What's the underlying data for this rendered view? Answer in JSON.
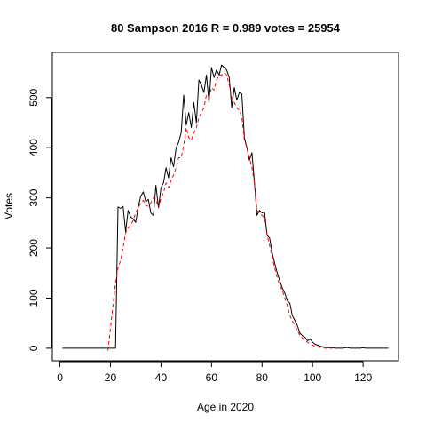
{
  "chart_data": {
    "type": "line",
    "title": "80 Sampson 2016 R = 0.989 votes = 25954",
    "xlabel": "Age in 2020",
    "ylabel": "Votes",
    "xlim": [
      -3,
      134
    ],
    "ylim": [
      -25,
      590
    ],
    "x_ticks": [
      0,
      20,
      40,
      60,
      80,
      100,
      120
    ],
    "y_ticks": [
      0,
      100,
      200,
      300,
      400,
      500
    ],
    "grid": false,
    "legend": "none",
    "series": [
      {
        "style": "solid",
        "color": "#000000",
        "x": [
          1,
          2,
          3,
          4,
          5,
          6,
          7,
          8,
          9,
          10,
          11,
          12,
          13,
          14,
          15,
          16,
          17,
          18,
          19,
          20,
          21,
          22,
          23,
          24,
          25,
          26,
          27,
          28,
          29,
          30,
          31,
          32,
          33,
          34,
          35,
          36,
          37,
          38,
          39,
          40,
          41,
          42,
          43,
          44,
          45,
          46,
          47,
          48,
          49,
          50,
          51,
          52,
          53,
          54,
          55,
          56,
          57,
          58,
          59,
          60,
          61,
          62,
          63,
          64,
          65,
          66,
          67,
          68,
          69,
          70,
          71,
          72,
          73,
          74,
          75,
          76,
          77,
          78,
          79,
          80,
          81,
          82,
          83,
          84,
          85,
          86,
          87,
          88,
          89,
          90,
          91,
          92,
          93,
          94,
          95,
          96,
          97,
          98,
          99,
          100,
          101,
          102,
          103,
          104,
          105,
          106,
          107,
          108,
          109,
          110,
          111,
          112,
          113,
          114,
          115,
          116,
          117,
          118,
          119,
          120,
          121,
          122,
          123,
          124,
          125,
          126,
          127,
          128,
          129,
          130
        ],
        "y": [
          0,
          0,
          0,
          0,
          0,
          0,
          0,
          0,
          0,
          0,
          0,
          0,
          0,
          0,
          0,
          0,
          0,
          0,
          0,
          0,
          0,
          0,
          282,
          279,
          283,
          232,
          275,
          262,
          258,
          251,
          282,
          303,
          312,
          292,
          297,
          270,
          265,
          325,
          280,
          320,
          330,
          360,
          340,
          380,
          362,
          400,
          411,
          430,
          505,
          445,
          470,
          440,
          490,
          450,
          535,
          525,
          510,
          545,
          490,
          560,
          540,
          555,
          545,
          565,
          560,
          555,
          540,
          480,
          520,
          495,
          510,
          507,
          420,
          400,
          375,
          390,
          330,
          265,
          275,
          270,
          272,
          225,
          220,
          190,
          170,
          150,
          135,
          120,
          110,
          95,
          90,
          65,
          55,
          45,
          30,
          25,
          22,
          15,
          18,
          12,
          8,
          6,
          4,
          3,
          2,
          1,
          1,
          1,
          0,
          0,
          0,
          0,
          1,
          1,
          0,
          0,
          0,
          0,
          0,
          1,
          0,
          0,
          0,
          0,
          0,
          0,
          0,
          0,
          0,
          0
        ]
      },
      {
        "style": "dashed",
        "color": "#ff0000",
        "x": [
          19,
          20,
          21,
          22,
          23,
          24,
          25,
          26,
          27,
          28,
          29,
          30,
          31,
          32,
          33,
          34,
          35,
          36,
          37,
          38,
          39,
          40,
          41,
          42,
          43,
          44,
          45,
          46,
          47,
          48,
          49,
          50,
          51,
          52,
          53,
          54,
          55,
          56,
          57,
          58,
          59,
          60,
          61,
          62,
          63,
          64,
          65,
          66,
          67,
          68,
          69,
          70,
          71,
          72,
          73,
          74,
          75,
          76,
          77,
          78,
          79,
          80,
          81,
          82,
          83,
          84,
          85,
          86,
          87,
          88,
          89,
          90,
          91,
          92,
          93,
          94,
          95,
          96,
          97,
          98,
          99,
          100,
          101,
          102,
          103,
          104,
          105,
          106,
          107,
          108
        ],
        "y": [
          -5,
          40,
          85,
          130,
          160,
          175,
          200,
          230,
          240,
          245,
          255,
          270,
          280,
          290,
          295,
          285,
          283,
          290,
          300,
          298,
          280,
          300,
          310,
          330,
          320,
          335,
          345,
          360,
          380,
          380,
          405,
          440,
          420,
          415,
          430,
          440,
          460,
          470,
          480,
          505,
          500,
          520,
          515,
          535,
          545,
          545,
          550,
          545,
          525,
          500,
          490,
          480,
          475,
          460,
          415,
          400,
          380,
          360,
          330,
          275,
          270,
          265,
          260,
          225,
          205,
          180,
          160,
          140,
          125,
          115,
          100,
          85,
          65,
          55,
          45,
          35,
          25,
          20,
          15,
          12,
          9,
          6,
          4,
          3,
          2,
          1,
          0,
          0,
          0,
          0
        ]
      }
    ]
  }
}
